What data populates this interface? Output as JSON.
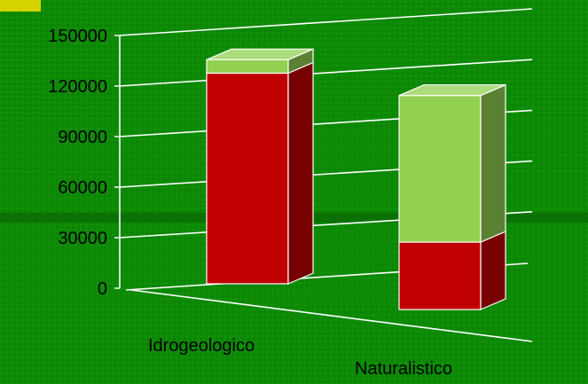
{
  "chart_data": {
    "type": "bar",
    "stacked": true,
    "three_d": true,
    "title": "",
    "xlabel": "",
    "ylabel": "",
    "categories": [
      "Idrogeologico",
      "Naturalistico"
    ],
    "series": [
      {
        "values": [
          125000,
          40000
        ],
        "color": "#c00000"
      },
      {
        "values": [
          8000,
          87000
        ],
        "color": "#92d050"
      }
    ],
    "yticks": [
      0,
      30000,
      60000,
      90000,
      120000,
      150000
    ],
    "ytick_labels": [
      "0",
      "30000",
      "60000",
      "90000",
      "120000",
      "150000"
    ],
    "ylim": [
      0,
      150000
    ],
    "grid": true,
    "legend": "none"
  },
  "colors": {
    "background": "#0e8a06",
    "band_dark": "#0b6e04",
    "gridline": "#ffffff",
    "corner_accent": "#d4d400",
    "text": "#000000"
  }
}
